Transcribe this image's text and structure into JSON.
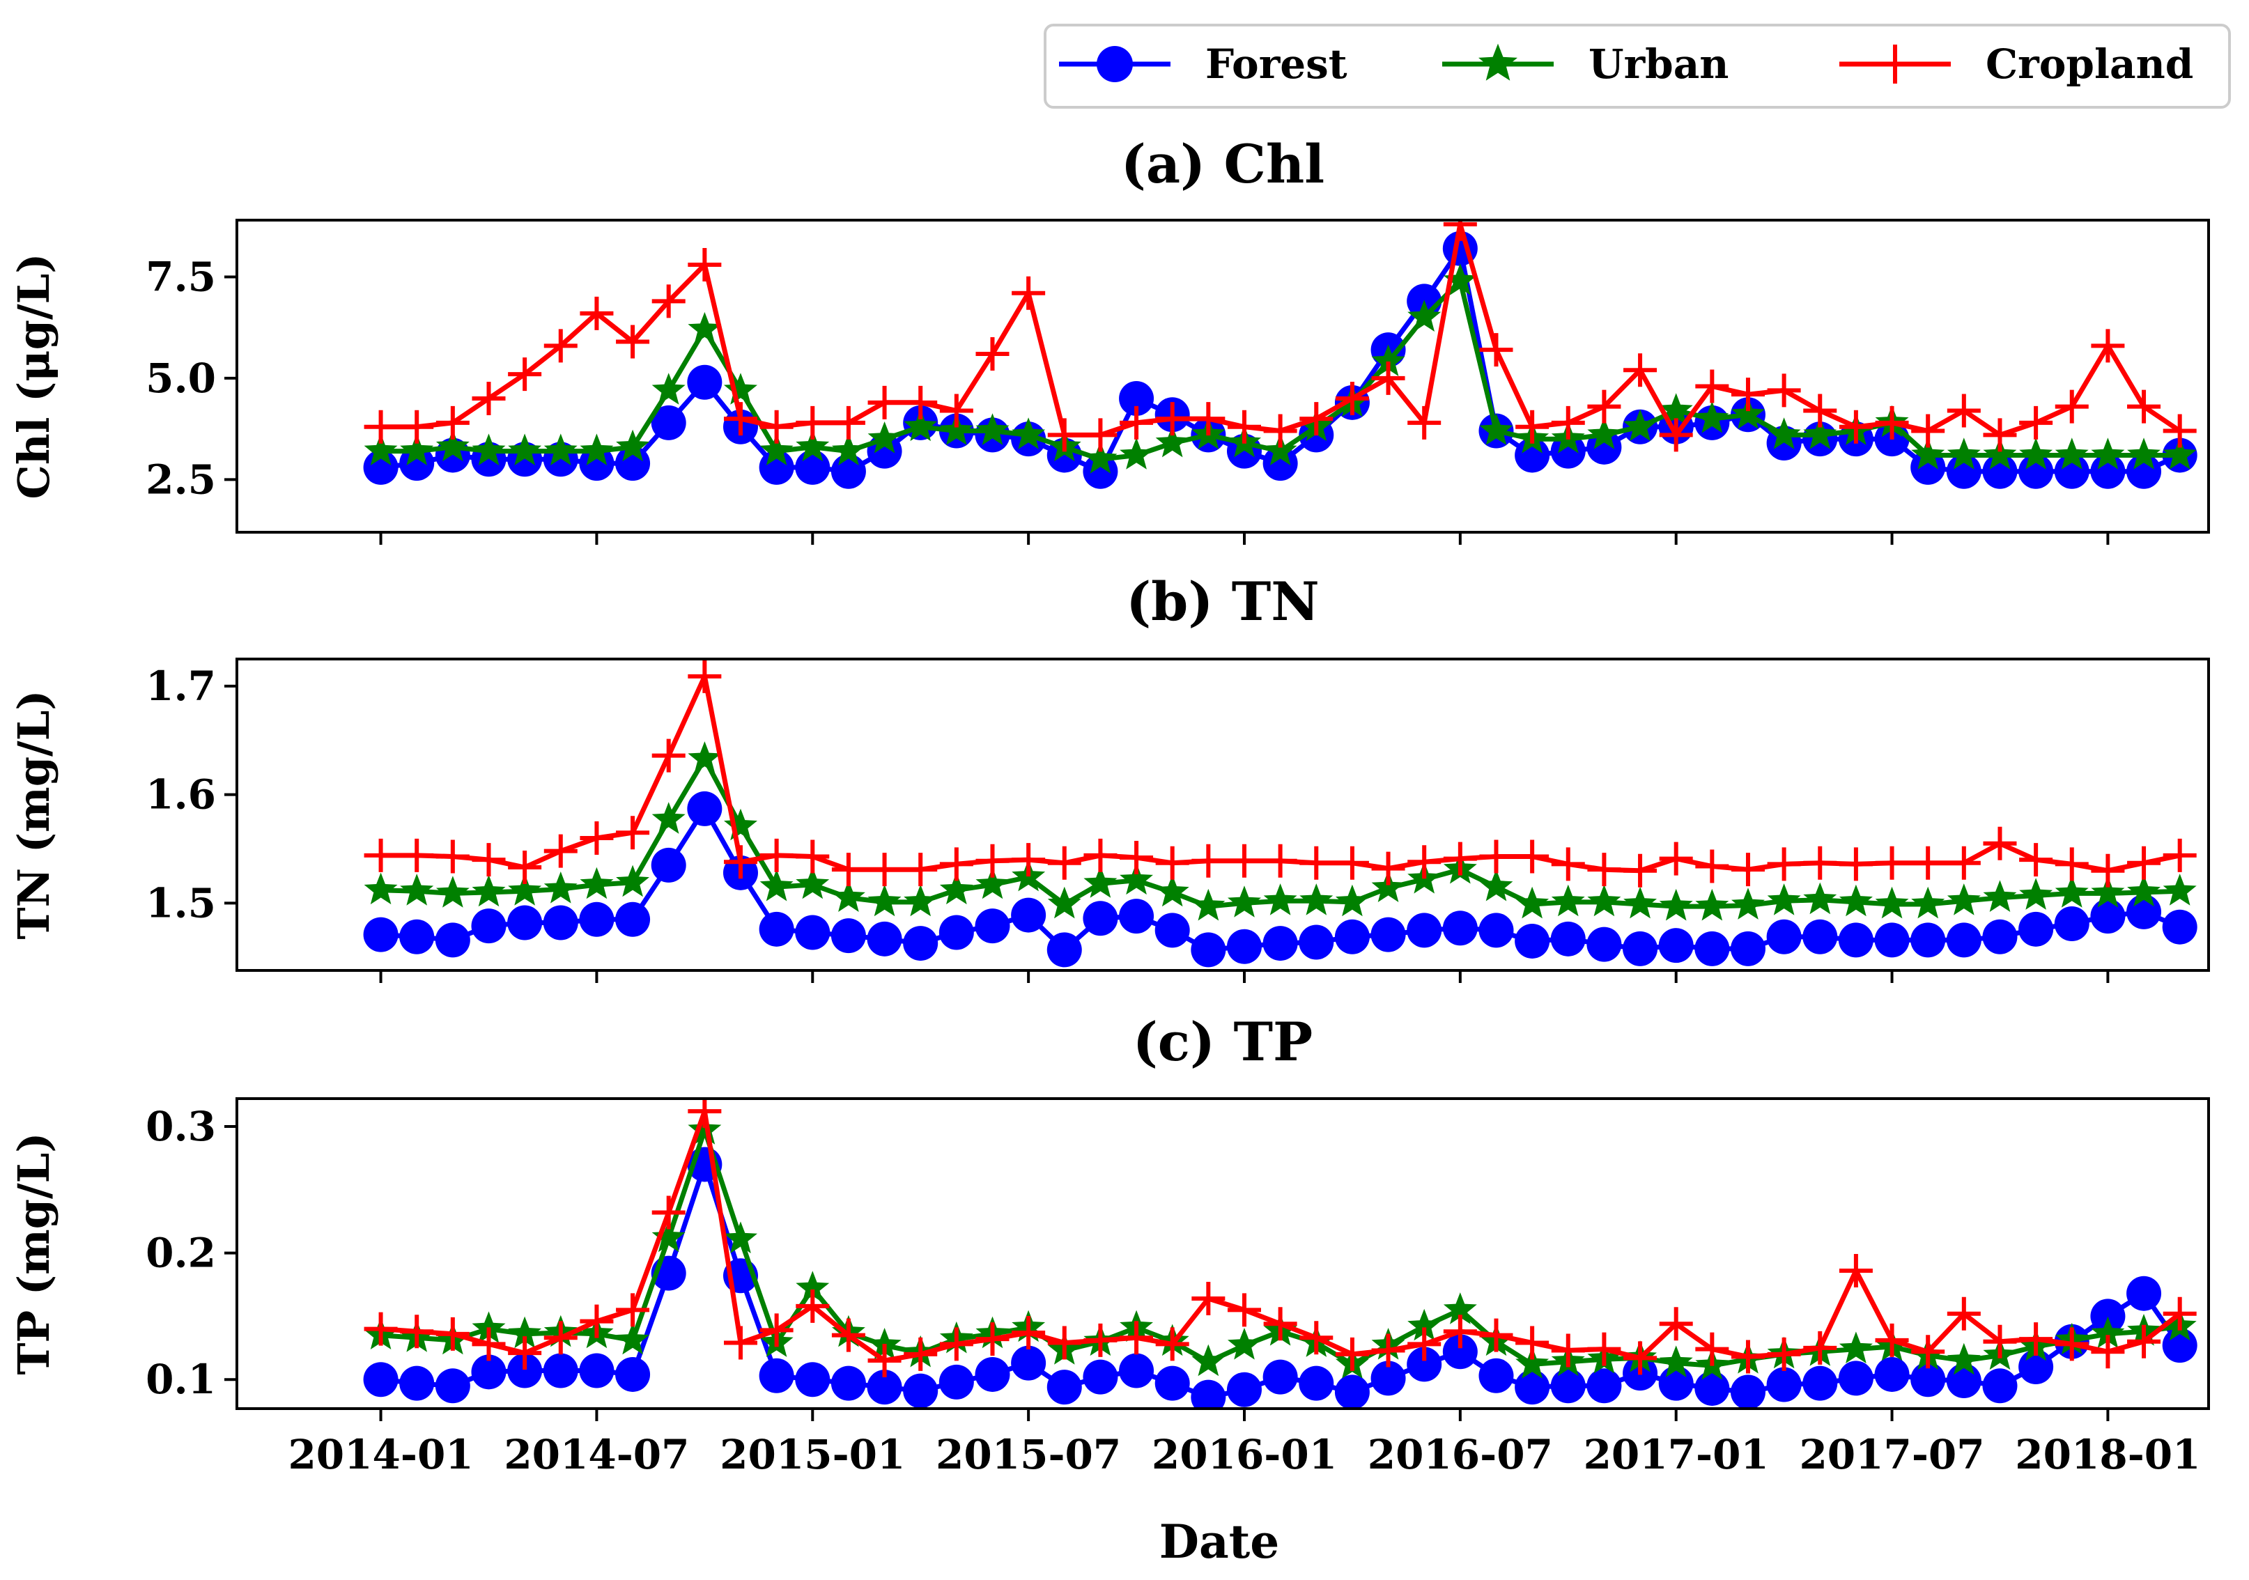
{
  "legend": [
    {
      "name": "Forest",
      "color": "#0000ff",
      "marker": "circle"
    },
    {
      "name": "Urban",
      "color": "#008000",
      "marker": "star"
    },
    {
      "name": "Cropland",
      "color": "#ff0000",
      "marker": "plus"
    }
  ],
  "xlabel": "Date",
  "chart_data": [
    {
      "type": "line",
      "title": "(a) Chl",
      "ylabel": "Chl (μg/L)",
      "ylim": [
        1.2,
        8.9
      ],
      "yticks": [
        2.5,
        5.0,
        7.5
      ],
      "ytick_labels": [
        "2.5",
        "5.0",
        "7.5"
      ],
      "xlim": [
        -4,
        50.8
      ],
      "xticks": [
        0,
        6,
        12,
        18,
        24,
        30,
        36,
        42,
        48
      ],
      "xtick_labels": [
        "2014-01",
        "2014-07",
        "2015-01",
        "2015-07",
        "2016-01",
        "2016-07",
        "2017-01",
        "2017-07",
        "2018-01"
      ],
      "series": [
        {
          "name": "Forest",
          "x": [
            0,
            1,
            2,
            3,
            4,
            5,
            6,
            7,
            8,
            9,
            10,
            11,
            12,
            13,
            14,
            15,
            16,
            17,
            18,
            19,
            20,
            21,
            22,
            23,
            24,
            25,
            26,
            27,
            28,
            29,
            30,
            31,
            32,
            33,
            34,
            35,
            36,
            37,
            38,
            39,
            40,
            41,
            42,
            43,
            44,
            45,
            46,
            47,
            48,
            49,
            50
          ],
          "values": [
            2.8,
            2.9,
            3.1,
            3.0,
            3.0,
            3.0,
            2.9,
            2.9,
            3.9,
            4.9,
            3.8,
            2.8,
            2.8,
            2.7,
            3.2,
            3.9,
            3.7,
            3.6,
            3.5,
            3.1,
            2.7,
            4.5,
            4.1,
            3.6,
            3.2,
            2.9,
            3.6,
            4.4,
            5.7,
            6.9,
            8.2,
            3.7,
            3.1,
            3.2,
            3.3,
            3.8,
            3.8,
            3.9,
            4.1,
            3.4,
            3.5,
            3.5,
            3.5,
            2.8,
            2.7,
            2.7,
            2.7,
            2.7,
            2.7,
            2.7,
            3.1
          ]
        },
        {
          "name": "Urban",
          "x": [
            0,
            1,
            2,
            3,
            4,
            5,
            6,
            7,
            8,
            9,
            10,
            11,
            12,
            13,
            14,
            15,
            16,
            17,
            18,
            19,
            20,
            21,
            22,
            23,
            24,
            25,
            26,
            27,
            28,
            29,
            30,
            31,
            32,
            33,
            34,
            35,
            36,
            37,
            38,
            39,
            40,
            41,
            42,
            43,
            44,
            45,
            46,
            47,
            48,
            49,
            50
          ],
          "values": [
            3.2,
            3.2,
            3.3,
            3.2,
            3.2,
            3.2,
            3.2,
            3.3,
            4.7,
            6.2,
            4.7,
            3.2,
            3.3,
            3.2,
            3.5,
            3.8,
            3.7,
            3.7,
            3.6,
            3.3,
            3.0,
            3.1,
            3.4,
            3.6,
            3.4,
            3.2,
            3.8,
            4.4,
            5.4,
            6.5,
            7.4,
            3.7,
            3.5,
            3.5,
            3.6,
            3.8,
            4.2,
            4.0,
            4.1,
            3.6,
            3.6,
            3.7,
            3.9,
            3.1,
            3.1,
            3.1,
            3.1,
            3.1,
            3.1,
            3.1,
            3.1
          ]
        },
        {
          "name": "Cropland",
          "x": [
            0,
            1,
            2,
            3,
            4,
            5,
            6,
            7,
            8,
            9,
            10,
            11,
            12,
            13,
            14,
            15,
            16,
            17,
            18,
            19,
            20,
            21,
            22,
            23,
            24,
            25,
            26,
            27,
            28,
            29,
            30,
            31,
            32,
            33,
            34,
            35,
            36,
            37,
            38,
            39,
            40,
            41,
            42,
            43,
            44,
            45,
            46,
            47,
            48,
            49,
            50
          ],
          "values": [
            3.8,
            3.8,
            3.9,
            4.5,
            5.1,
            5.8,
            6.6,
            5.9,
            6.9,
            7.8,
            4.0,
            3.8,
            3.9,
            3.9,
            4.4,
            4.4,
            4.2,
            5.6,
            7.1,
            3.6,
            3.6,
            3.9,
            4.0,
            4.0,
            3.8,
            3.7,
            4.0,
            4.5,
            5.0,
            3.9,
            8.8,
            5.7,
            3.8,
            3.9,
            4.3,
            5.2,
            3.6,
            4.8,
            4.6,
            4.7,
            4.2,
            3.8,
            3.9,
            3.7,
            4.2,
            3.6,
            3.9,
            4.3,
            5.8,
            4.3,
            3.7
          ]
        }
      ]
    },
    {
      "type": "line",
      "title": "(b) TN",
      "ylabel": "TN (mg/L)",
      "ylim": [
        1.438,
        1.725
      ],
      "yticks": [
        1.5,
        1.6,
        1.7
      ],
      "ytick_labels": [
        "1.5",
        "1.6",
        "1.7"
      ],
      "xlim": [
        -4,
        50.8
      ],
      "xticks": [
        0,
        6,
        12,
        18,
        24,
        30,
        36,
        42,
        48
      ],
      "xtick_labels": [
        "2014-01",
        "2014-07",
        "2015-01",
        "2015-07",
        "2016-01",
        "2016-07",
        "2017-01",
        "2017-07",
        "2018-01"
      ],
      "series": [
        {
          "name": "Forest",
          "x": [
            0,
            1,
            2,
            3,
            4,
            5,
            6,
            7,
            8,
            9,
            10,
            11,
            12,
            13,
            14,
            15,
            16,
            17,
            18,
            19,
            20,
            21,
            22,
            23,
            24,
            25,
            26,
            27,
            28,
            29,
            30,
            31,
            32,
            33,
            34,
            35,
            36,
            37,
            38,
            39,
            40,
            41,
            42,
            43,
            44,
            45,
            46,
            47,
            48,
            49,
            50
          ],
          "values": [
            1.471,
            1.469,
            1.466,
            1.479,
            1.482,
            1.482,
            1.485,
            1.485,
            1.535,
            1.587,
            1.528,
            1.476,
            1.473,
            1.47,
            1.467,
            1.463,
            1.473,
            1.479,
            1.489,
            1.457,
            1.486,
            1.488,
            1.475,
            1.457,
            1.46,
            1.463,
            1.464,
            1.469,
            1.471,
            1.475,
            1.477,
            1.475,
            1.465,
            1.467,
            1.462,
            1.458,
            1.461,
            1.458,
            1.458,
            1.469,
            1.469,
            1.466,
            1.466,
            1.466,
            1.466,
            1.469,
            1.476,
            1.481,
            1.488,
            1.492,
            1.478
          ]
        },
        {
          "name": "Urban",
          "x": [
            0,
            1,
            2,
            3,
            4,
            5,
            6,
            7,
            8,
            9,
            10,
            11,
            12,
            13,
            14,
            15,
            16,
            17,
            18,
            19,
            20,
            21,
            22,
            23,
            24,
            25,
            26,
            27,
            28,
            29,
            30,
            31,
            32,
            33,
            34,
            35,
            36,
            37,
            38,
            39,
            40,
            41,
            42,
            43,
            44,
            45,
            46,
            47,
            48,
            49,
            50
          ],
          "values": [
            1.512,
            1.511,
            1.509,
            1.51,
            1.511,
            1.513,
            1.517,
            1.519,
            1.577,
            1.633,
            1.571,
            1.515,
            1.517,
            1.505,
            1.501,
            1.501,
            1.512,
            1.517,
            1.524,
            1.499,
            1.518,
            1.521,
            1.51,
            1.497,
            1.5,
            1.502,
            1.502,
            1.501,
            1.514,
            1.522,
            1.531,
            1.515,
            1.499,
            1.501,
            1.501,
            1.499,
            1.497,
            1.497,
            1.498,
            1.502,
            1.503,
            1.501,
            1.499,
            1.499,
            1.502,
            1.505,
            1.507,
            1.509,
            1.509,
            1.51,
            1.511
          ]
        },
        {
          "name": "Cropland",
          "x": [
            0,
            1,
            2,
            3,
            4,
            5,
            6,
            7,
            8,
            9,
            10,
            11,
            12,
            13,
            14,
            15,
            16,
            17,
            18,
            19,
            20,
            21,
            22,
            23,
            24,
            25,
            26,
            27,
            28,
            29,
            30,
            31,
            32,
            33,
            34,
            35,
            36,
            37,
            38,
            39,
            40,
            41,
            42,
            43,
            44,
            45,
            46,
            47,
            48,
            49,
            50
          ],
          "values": [
            1.544,
            1.544,
            1.543,
            1.54,
            1.533,
            1.548,
            1.56,
            1.565,
            1.636,
            1.709,
            1.538,
            1.544,
            1.543,
            1.531,
            1.531,
            1.531,
            1.536,
            1.539,
            1.54,
            1.537,
            1.544,
            1.542,
            1.537,
            1.539,
            1.539,
            1.539,
            1.537,
            1.537,
            1.532,
            1.538,
            1.541,
            1.543,
            1.543,
            1.536,
            1.531,
            1.53,
            1.541,
            1.534,
            1.531,
            1.536,
            1.537,
            1.536,
            1.537,
            1.537,
            1.537,
            1.555,
            1.54,
            1.536,
            1.53,
            1.537,
            1.544
          ]
        }
      ]
    },
    {
      "type": "line",
      "title": "(c) TP",
      "ylabel": "TP (mg/L)",
      "ylim": [
        0.077,
        0.322
      ],
      "yticks": [
        0.1,
        0.2,
        0.3
      ],
      "ytick_labels": [
        "0.1",
        "0.2",
        "0.3"
      ],
      "xlim": [
        -4,
        50.8
      ],
      "xticks": [
        0,
        6,
        12,
        18,
        24,
        30,
        36,
        42,
        48
      ],
      "xtick_labels": [
        "2014-01",
        "2014-07",
        "2015-01",
        "2015-07",
        "2016-01",
        "2016-07",
        "2017-01",
        "2017-07",
        "2018-01"
      ],
      "series": [
        {
          "name": "Forest",
          "x": [
            0,
            1,
            2,
            3,
            4,
            5,
            6,
            7,
            8,
            9,
            10,
            11,
            12,
            13,
            14,
            15,
            16,
            17,
            18,
            19,
            20,
            21,
            22,
            23,
            24,
            25,
            26,
            27,
            28,
            29,
            30,
            31,
            32,
            33,
            34,
            35,
            36,
            37,
            38,
            39,
            40,
            41,
            42,
            43,
            44,
            45,
            46,
            47,
            48,
            49,
            50
          ],
          "values": [
            0.1,
            0.097,
            0.095,
            0.106,
            0.107,
            0.107,
            0.107,
            0.104,
            0.184,
            0.27,
            0.182,
            0.103,
            0.1,
            0.097,
            0.094,
            0.091,
            0.098,
            0.104,
            0.113,
            0.094,
            0.102,
            0.107,
            0.097,
            0.086,
            0.092,
            0.102,
            0.097,
            0.09,
            0.101,
            0.112,
            0.122,
            0.103,
            0.094,
            0.095,
            0.095,
            0.105,
            0.097,
            0.093,
            0.09,
            0.096,
            0.097,
            0.101,
            0.104,
            0.1,
            0.099,
            0.095,
            0.11,
            0.13,
            0.15,
            0.168,
            0.127
          ]
        },
        {
          "name": "Urban",
          "x": [
            0,
            1,
            2,
            3,
            4,
            5,
            6,
            7,
            8,
            9,
            10,
            11,
            12,
            13,
            14,
            15,
            16,
            17,
            18,
            19,
            20,
            21,
            22,
            23,
            24,
            25,
            26,
            27,
            28,
            29,
            30,
            31,
            32,
            33,
            34,
            35,
            36,
            37,
            38,
            39,
            40,
            41,
            42,
            43,
            44,
            45,
            46,
            47,
            48,
            49,
            50
          ],
          "values": [
            0.135,
            0.133,
            0.131,
            0.14,
            0.136,
            0.137,
            0.136,
            0.131,
            0.212,
            0.297,
            0.211,
            0.129,
            0.172,
            0.137,
            0.127,
            0.121,
            0.132,
            0.136,
            0.141,
            0.123,
            0.13,
            0.141,
            0.13,
            0.114,
            0.127,
            0.138,
            0.129,
            0.112,
            0.127,
            0.142,
            0.155,
            0.13,
            0.112,
            0.114,
            0.116,
            0.117,
            0.113,
            0.111,
            0.116,
            0.12,
            0.122,
            0.124,
            0.126,
            0.119,
            0.115,
            0.119,
            0.126,
            0.131,
            0.136,
            0.138,
            0.142
          ]
        },
        {
          "name": "Cropland",
          "x": [
            0,
            1,
            2,
            3,
            4,
            5,
            6,
            7,
            8,
            9,
            10,
            11,
            12,
            13,
            14,
            15,
            16,
            17,
            18,
            19,
            20,
            21,
            22,
            23,
            24,
            25,
            26,
            27,
            28,
            29,
            30,
            31,
            32,
            33,
            34,
            35,
            36,
            37,
            38,
            39,
            40,
            41,
            42,
            43,
            44,
            45,
            46,
            47,
            48,
            49,
            50
          ],
          "values": [
            0.14,
            0.138,
            0.136,
            0.128,
            0.121,
            0.133,
            0.146,
            0.155,
            0.232,
            0.312,
            0.129,
            0.139,
            0.158,
            0.135,
            0.115,
            0.12,
            0.128,
            0.132,
            0.137,
            0.129,
            0.131,
            0.133,
            0.128,
            0.164,
            0.155,
            0.144,
            0.133,
            0.12,
            0.123,
            0.128,
            0.138,
            0.135,
            0.129,
            0.123,
            0.124,
            0.117,
            0.144,
            0.124,
            0.118,
            0.12,
            0.125,
            0.186,
            0.131,
            0.122,
            0.152,
            0.13,
            0.132,
            0.128,
            0.122,
            0.13,
            0.152
          ]
        }
      ]
    }
  ]
}
